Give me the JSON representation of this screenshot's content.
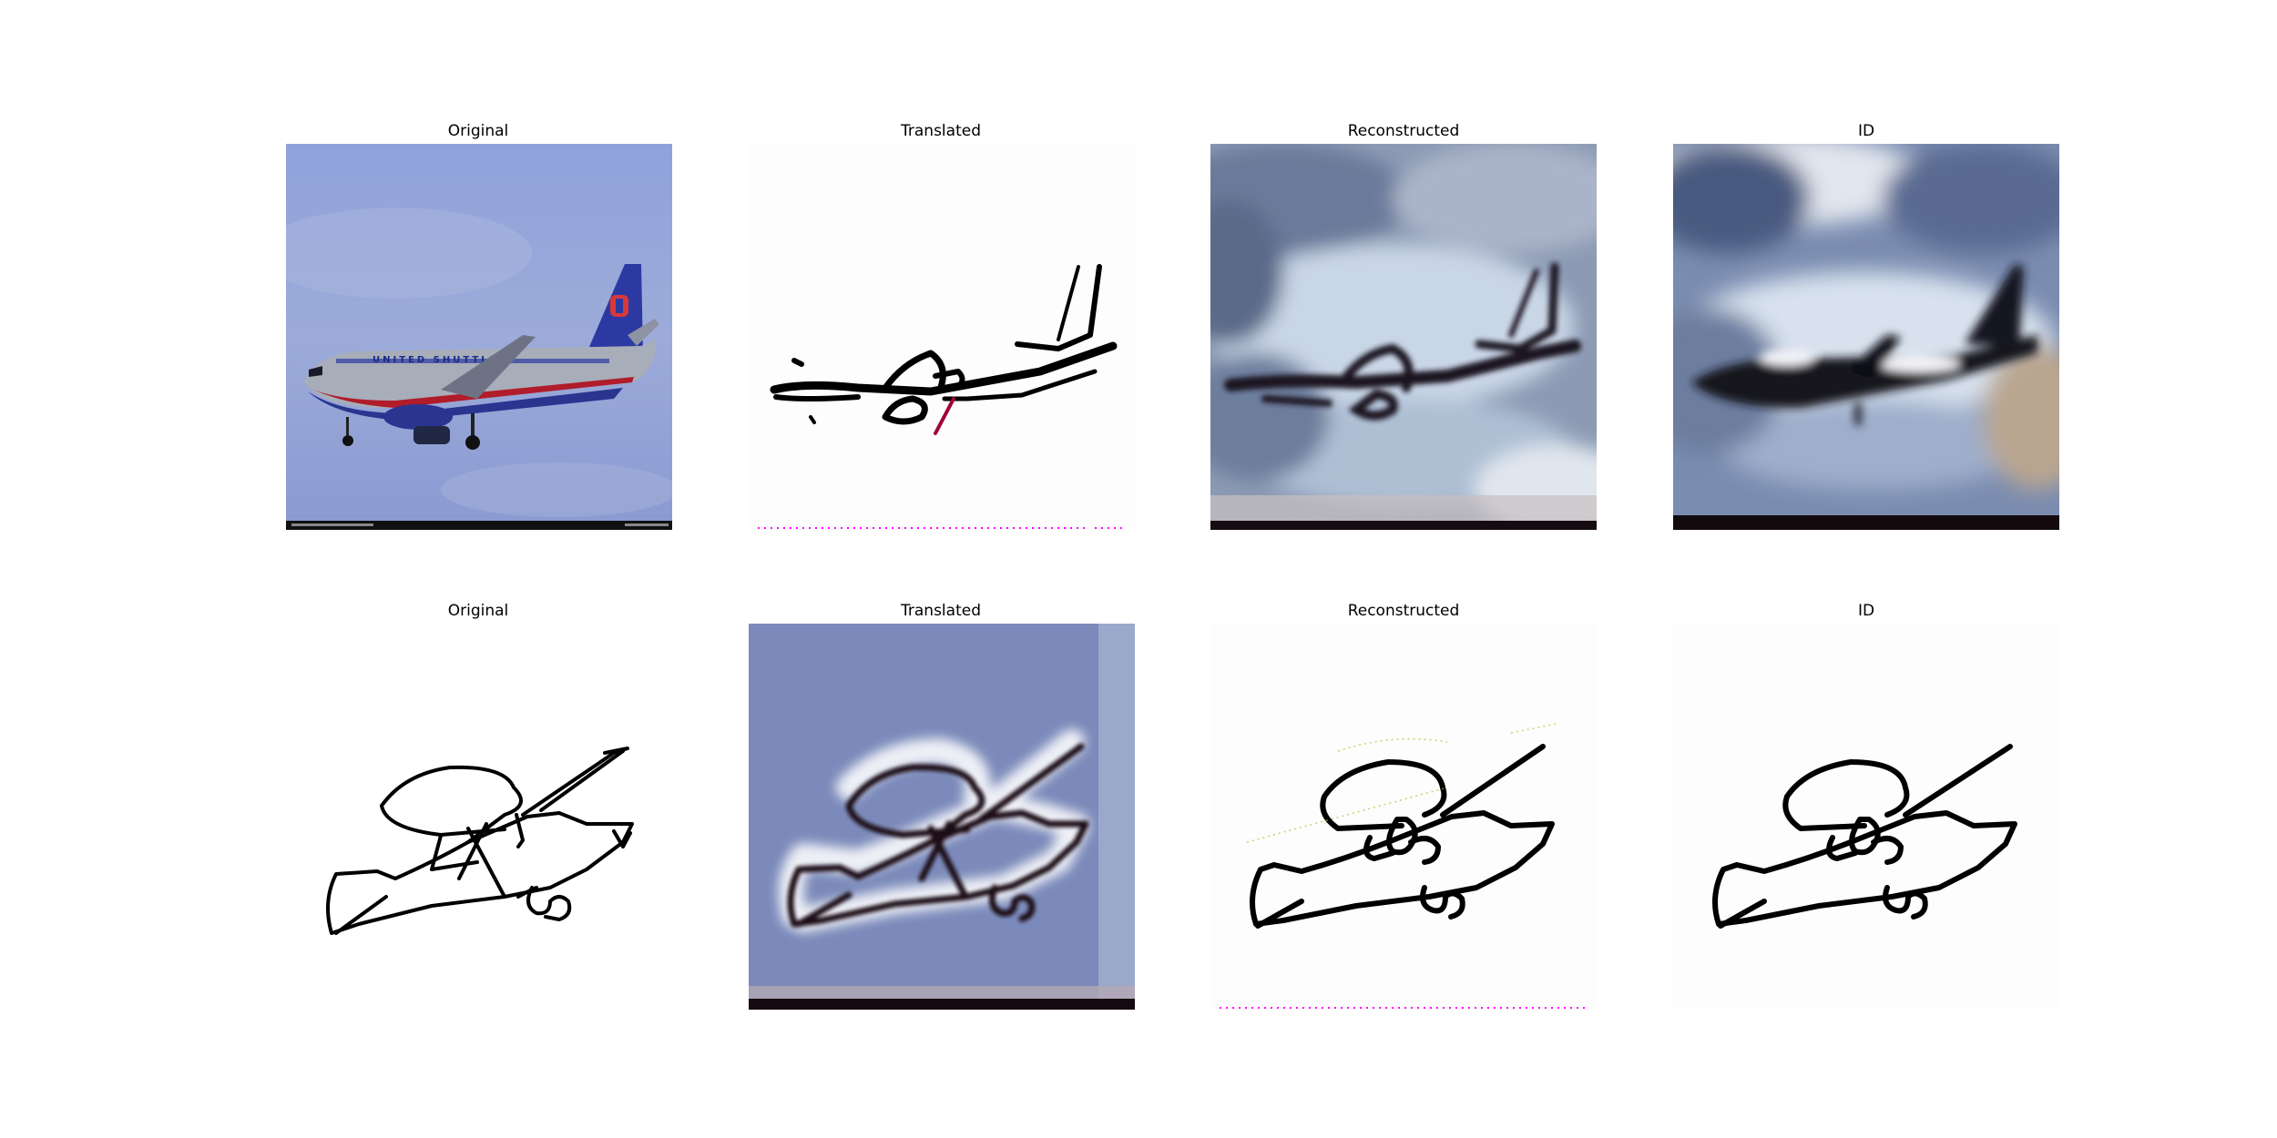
{
  "figure": {
    "rows": [
      {
        "panels": [
          {
            "title": "Original",
            "kind": "photo",
            "content": "airliner-photo"
          },
          {
            "title": "Translated",
            "kind": "sketch",
            "content": "airliner-sketch"
          },
          {
            "title": "Reconstructed",
            "kind": "blur-photo",
            "content": "airliner-reconstructed"
          },
          {
            "title": "ID",
            "kind": "blur-photo",
            "content": "airliner-identity"
          }
        ]
      },
      {
        "panels": [
          {
            "title": "Original",
            "kind": "sketch",
            "content": "prop-plane-sketch"
          },
          {
            "title": "Translated",
            "kind": "blur-photo",
            "content": "prop-plane-translated"
          },
          {
            "title": "Reconstructed",
            "kind": "sketch",
            "content": "prop-plane-reconstructed"
          },
          {
            "title": "ID",
            "kind": "sketch",
            "content": "prop-plane-identity"
          }
        ]
      }
    ]
  },
  "colors": {
    "sky": "#8a9fd8",
    "cloud": "#e8eef6",
    "stroke": "#000000",
    "fuselage": "#9fa6b4",
    "tail": "#2c39a3"
  },
  "photo_text": {
    "livery": "UNITED SHUTTLE"
  }
}
